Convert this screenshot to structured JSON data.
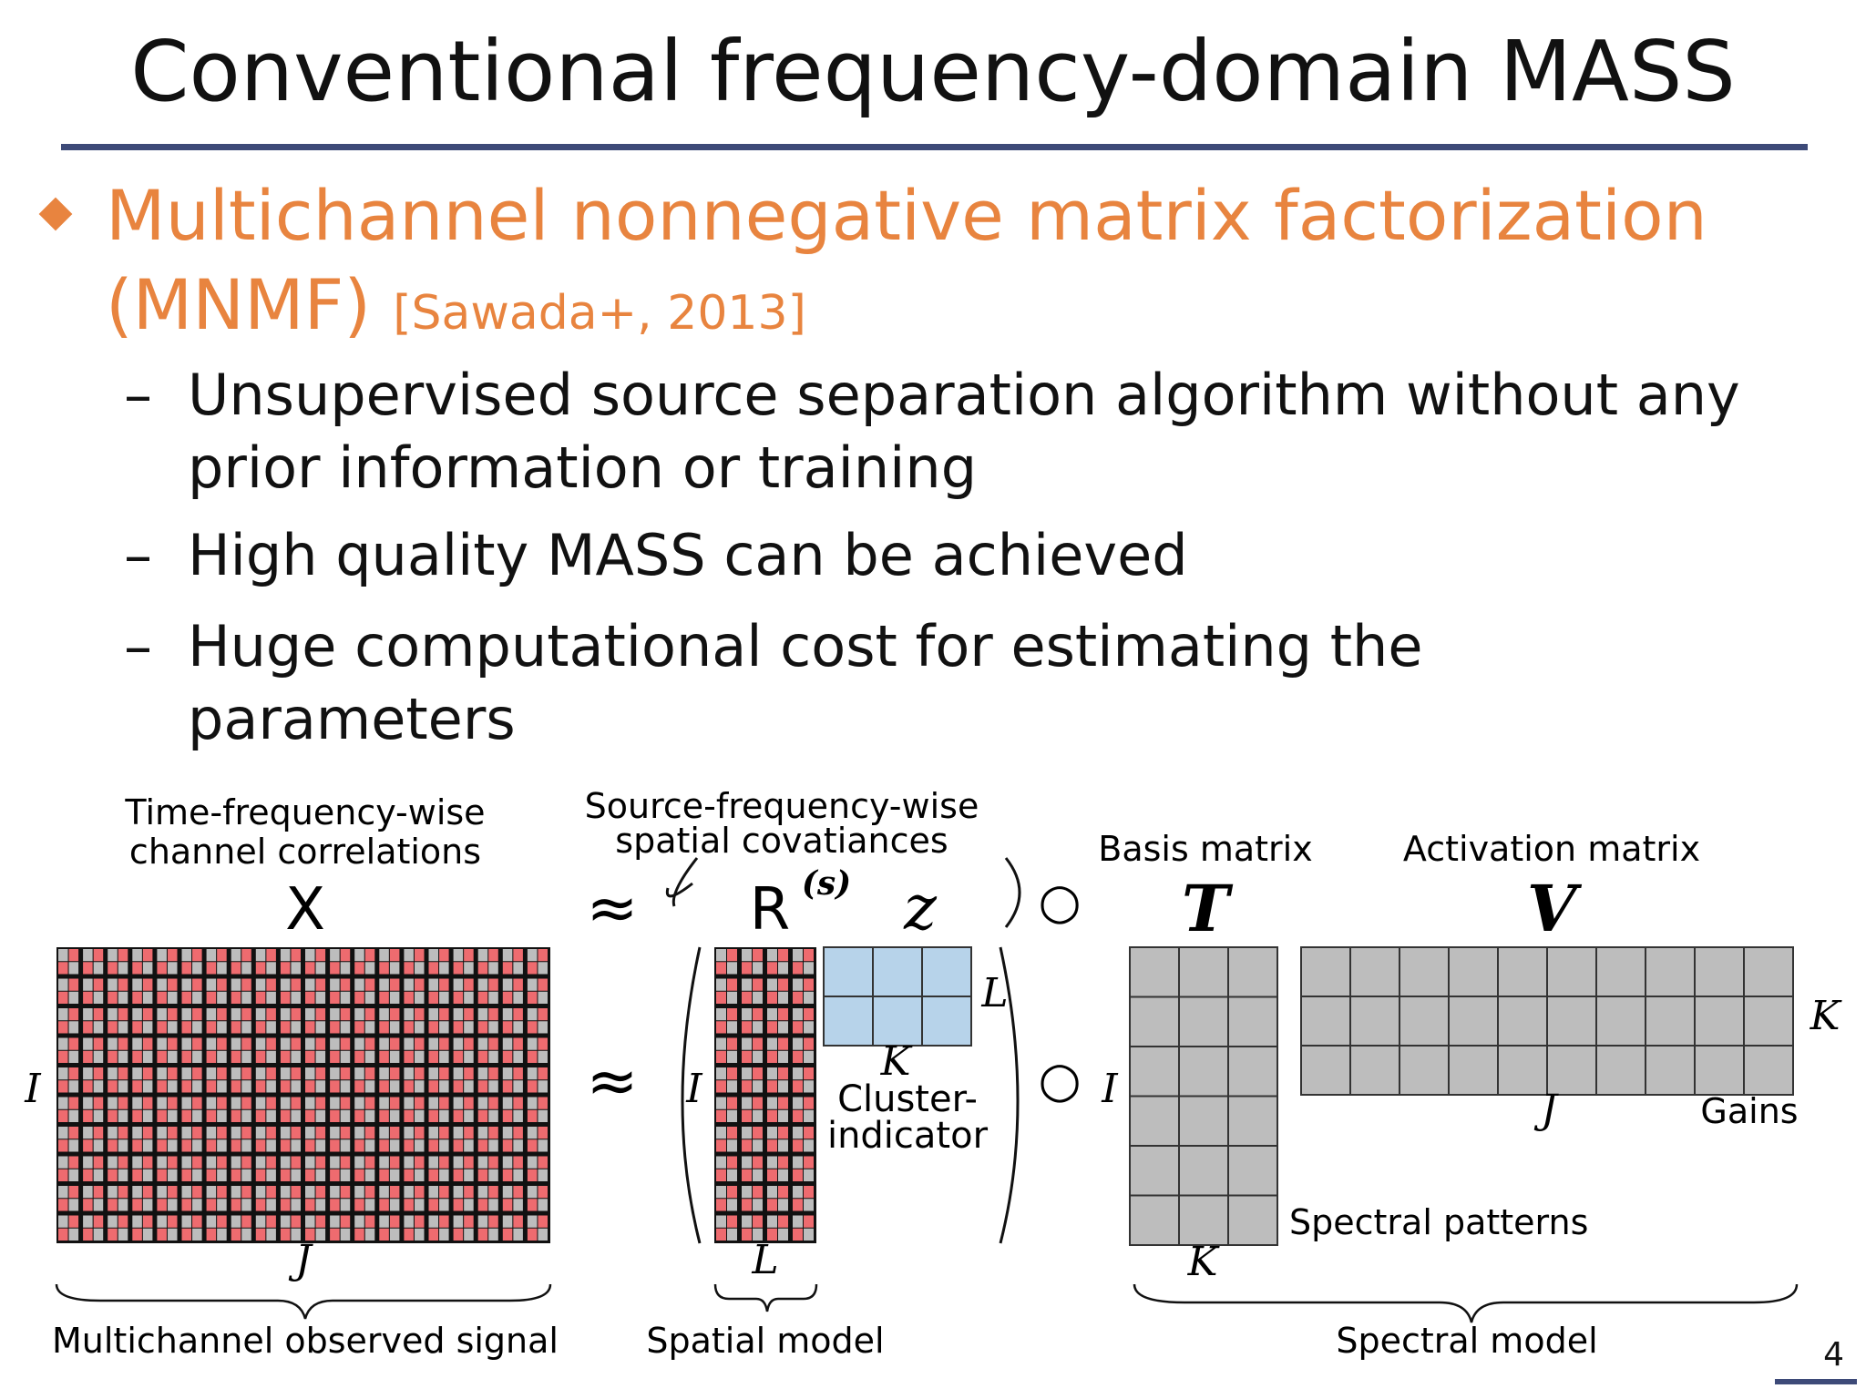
{
  "slide": {
    "title": "Conventional frequency-domain MASS",
    "bullet": {
      "text": "Multichannel nonnegative matrix factorization (MNMF)",
      "citation": "[Sawada+, 2013]"
    },
    "sub_bullets": [
      {
        "dash": "–",
        "text": "Unsupervised source separation algorithm without any prior information or training"
      },
      {
        "dash": "–",
        "text": "High quality MASS can be achieved"
      },
      {
        "dash": "–",
        "text": "Huge computational cost for estimating the parameters"
      }
    ],
    "page_number": "4"
  },
  "figure": {
    "x_label_line1": "Time-frequency-wise",
    "x_label_line2": "channel correlations",
    "x_symbol": "X",
    "r_label_line1": "Source-frequency-wise",
    "r_label_line2": "spatial covatiances",
    "r_symbol": "R",
    "r_superscript": "(s)",
    "z_symbol": "z",
    "approx_symbol": "≈",
    "hadamard_symbol": "○",
    "basis_label": "Basis matrix",
    "t_symbol": "T",
    "activation_label": "Activation matrix",
    "v_symbol": "V",
    "dim_I": "I",
    "dim_J": "J",
    "dim_K": "K",
    "dim_L": "L",
    "cluster_line1": "Cluster-",
    "cluster_line2": "indicator",
    "gains": "Gains",
    "spectral_patterns": "Spectral patterns",
    "observed_caption": "Multichannel observed signal",
    "spatial_caption": "Spatial model",
    "spectral_caption": "Spectral model",
    "colors": {
      "red": "#ee6b6f",
      "gray": "#bdbdbd",
      "blue": "#b7d3ea",
      "orange": "#e8843f",
      "rule": "#3d4a78"
    }
  }
}
